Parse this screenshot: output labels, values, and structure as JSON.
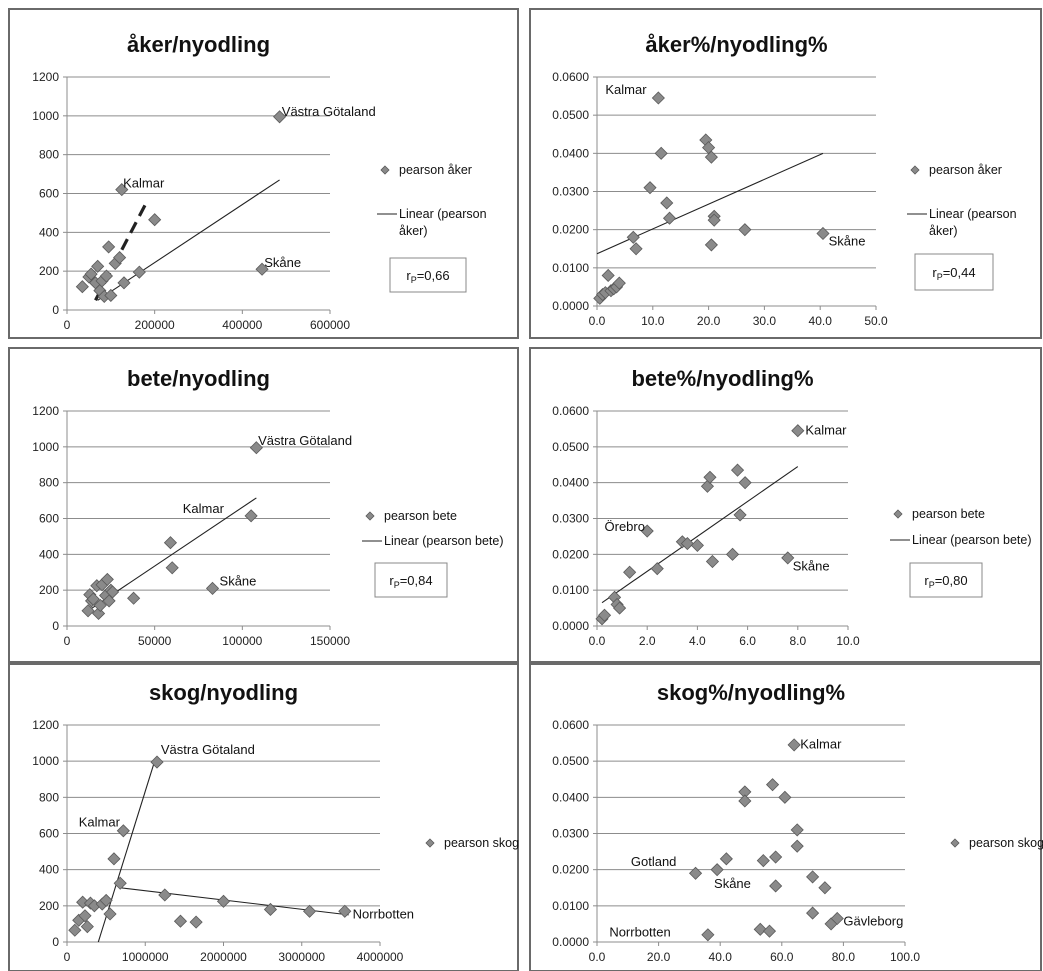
{
  "chart_data": [
    {
      "type": "scatter",
      "title": "åker/nyodling",
      "xlim": [
        0,
        600000
      ],
      "ylim": [
        0,
        1200
      ],
      "xticks": [
        0,
        200000,
        400000,
        600000
      ],
      "xtick_labels": [
        "0",
        "200000",
        "400000",
        "600000"
      ],
      "yticks": [
        0,
        200,
        400,
        600,
        800,
        1000,
        1200
      ],
      "ytick_labels": [
        "0",
        "200",
        "400",
        "600",
        "800",
        "1000",
        "1200"
      ],
      "grid": "horizontal",
      "series": [
        {
          "name": "pearson åker",
          "x": [
            35000,
            50000,
            55000,
            65000,
            70000,
            75000,
            80000,
            85000,
            90000,
            95000,
            100000,
            110000,
            120000,
            125000,
            130000,
            165000,
            200000,
            445000,
            485000
          ],
          "y": [
            120,
            170,
            185,
            140,
            225,
            100,
            150,
            70,
            175,
            325,
            75,
            240,
            270,
            620,
            140,
            195,
            465,
            210,
            995
          ]
        }
      ],
      "trendlines": [
        {
          "style": "solid",
          "x": [
            70000,
            485000
          ],
          "y": [
            50,
            670
          ]
        },
        {
          "style": "dashed",
          "x": [
            65000,
            185000
          ],
          "y": [
            50,
            570
          ]
        }
      ],
      "legend": {
        "marker": "pearson åker",
        "line_lines": [
          "Linear (pearson",
          "åker)"
        ],
        "placement": "right"
      },
      "correlation": {
        "prefix": "r",
        "sub": "P",
        "value": "=0,66"
      },
      "annotations": [
        {
          "text": "Västra Götaland",
          "x": 490000,
          "y": 1000
        },
        {
          "text": "Kalmar",
          "x": 128000,
          "y": 630
        },
        {
          "text": "Skåne",
          "x": 450000,
          "y": 222
        }
      ]
    },
    {
      "type": "scatter",
      "title": "åker%/nyodling%",
      "xlim": [
        0,
        50
      ],
      "ylim": [
        0,
        0.06
      ],
      "xticks": [
        0,
        10,
        20,
        30,
        40,
        50
      ],
      "xtick_labels": [
        "0.0",
        "10.0",
        "20.0",
        "30.0",
        "40.0",
        "50.0"
      ],
      "yticks": [
        0,
        0.01,
        0.02,
        0.03,
        0.04,
        0.05,
        0.06
      ],
      "ytick_labels": [
        "0.0000",
        "0.0100",
        "0.0200",
        "0.0300",
        "0.0400",
        "0.0500",
        "0.0600"
      ],
      "grid": "horizontal",
      "series": [
        {
          "name": "pearson åker",
          "x": [
            0.5,
            1.0,
            1.5,
            2.0,
            2.5,
            3.0,
            3.5,
            4.0,
            6.5,
            7.0,
            9.5,
            11.0,
            11.5,
            12.5,
            13.0,
            19.5,
            20.0,
            20.5,
            21.0,
            20.5,
            21.0,
            26.5,
            40.5
          ],
          "y": [
            0.002,
            0.003,
            0.0035,
            0.008,
            0.004,
            0.0045,
            0.005,
            0.006,
            0.018,
            0.015,
            0.031,
            0.0545,
            0.04,
            0.027,
            0.023,
            0.0435,
            0.0415,
            0.039,
            0.0235,
            0.016,
            0.0225,
            0.02,
            0.019
          ]
        }
      ],
      "trendlines": [
        {
          "style": "solid",
          "x": [
            0,
            40.5
          ],
          "y": [
            0.0137,
            0.04
          ]
        }
      ],
      "legend": {
        "marker": "pearson åker",
        "line_lines": [
          "Linear (pearson",
          "åker)"
        ],
        "placement": "right"
      },
      "correlation": {
        "prefix": "r",
        "sub": "P",
        "value": "=0,44"
      },
      "annotations": [
        {
          "text": "Kalmar",
          "x": 1.5,
          "y": 0.0555
        },
        {
          "text": "Skåne",
          "x": 41.5,
          "y": 0.0158
        }
      ]
    },
    {
      "type": "scatter",
      "title": "bete/nyodling",
      "xlim": [
        0,
        150000
      ],
      "ylim": [
        0,
        1200
      ],
      "xticks": [
        0,
        50000,
        100000,
        150000
      ],
      "xtick_labels": [
        "0",
        "50000",
        "100000",
        "150000"
      ],
      "yticks": [
        0,
        200,
        400,
        600,
        800,
        1000,
        1200
      ],
      "ytick_labels": [
        "0",
        "200",
        "400",
        "600",
        "800",
        "1000",
        "1200"
      ],
      "grid": "horizontal",
      "series": [
        {
          "name": "pearson bete",
          "x": [
            12000,
            13000,
            14000,
            15000,
            17000,
            18000,
            19000,
            20000,
            22000,
            23000,
            24000,
            25000,
            26000,
            38000,
            59000,
            60000,
            83000,
            105000,
            108000
          ],
          "y": [
            85,
            175,
            140,
            150,
            225,
            70,
            115,
            230,
            170,
            260,
            140,
            200,
            190,
            155,
            465,
            325,
            210,
            615,
            995
          ]
        }
      ],
      "trendlines": [
        {
          "style": "solid",
          "x": [
            12000,
            108000
          ],
          "y": [
            85,
            715
          ]
        }
      ],
      "legend": {
        "marker": "pearson bete",
        "line_lines": [
          "Linear (pearson bete)"
        ],
        "placement": "right"
      },
      "correlation": {
        "prefix": "r",
        "sub": "P",
        "value": "=0,84"
      },
      "annotations": [
        {
          "text": "Västra Götaland",
          "x": 109000,
          "y": 1010
        },
        {
          "text": "Kalmar",
          "x": 66000,
          "y": 630
        },
        {
          "text": "Skåne",
          "x": 87000,
          "y": 225
        }
      ]
    },
    {
      "type": "scatter",
      "title": "bete%/nyodling%",
      "xlim": [
        0,
        10
      ],
      "ylim": [
        0,
        0.06
      ],
      "xticks": [
        0,
        2,
        4,
        6,
        8,
        10
      ],
      "xtick_labels": [
        "0.0",
        "2.0",
        "4.0",
        "6.0",
        "8.0",
        "10.0"
      ],
      "yticks": [
        0,
        0.01,
        0.02,
        0.03,
        0.04,
        0.05,
        0.06
      ],
      "ytick_labels": [
        "0.0000",
        "0.0100",
        "0.0200",
        "0.0300",
        "0.0400",
        "0.0500",
        "0.0600"
      ],
      "grid": "horizontal",
      "series": [
        {
          "name": "pearson bete",
          "x": [
            0.2,
            0.3,
            0.7,
            0.8,
            0.9,
            1.3,
            2.0,
            2.4,
            3.4,
            3.6,
            4.0,
            4.4,
            4.5,
            4.6,
            5.4,
            5.6,
            5.7,
            5.9,
            7.6,
            8.0
          ],
          "y": [
            0.002,
            0.003,
            0.008,
            0.006,
            0.005,
            0.015,
            0.0265,
            0.016,
            0.0235,
            0.023,
            0.0225,
            0.039,
            0.0415,
            0.018,
            0.02,
            0.0435,
            0.031,
            0.04,
            0.019,
            0.0545
          ]
        }
      ],
      "trendlines": [
        {
          "style": "solid",
          "x": [
            0.2,
            8.0
          ],
          "y": [
            0.0065,
            0.0445
          ]
        }
      ],
      "legend": {
        "marker": "pearson bete",
        "line_lines": [
          "Linear (pearson bete)"
        ],
        "placement": "right"
      },
      "correlation": {
        "prefix": "r",
        "sub": "P",
        "value": "=0,80"
      },
      "annotations": [
        {
          "text": "Kalmar",
          "x": 8.3,
          "y": 0.0535
        },
        {
          "text": "Örebro",
          "x": 0.3,
          "y": 0.0265
        },
        {
          "text": "Skåne",
          "x": 7.8,
          "y": 0.0155
        }
      ]
    },
    {
      "type": "scatter",
      "title": "skog/nyodling",
      "xlim": [
        0,
        4000000
      ],
      "ylim": [
        0,
        1200
      ],
      "xticks": [
        0,
        1000000,
        2000000,
        3000000,
        4000000
      ],
      "xtick_labels": [
        "0",
        "1000000",
        "2000000",
        "3000000",
        "4000000"
      ],
      "yticks": [
        0,
        200,
        400,
        600,
        800,
        1000,
        1200
      ],
      "ytick_labels": [
        "0",
        "200",
        "400",
        "600",
        "800",
        "1000",
        "1200"
      ],
      "grid": "horizontal",
      "series": [
        {
          "name": "pearson skog",
          "x": [
            100000,
            150000,
            200000,
            230000,
            260000,
            300000,
            350000,
            450000,
            500000,
            550000,
            600000,
            680000,
            720000,
            1150000,
            1250000,
            1450000,
            1650000,
            2000000,
            2600000,
            3100000,
            3550000
          ],
          "y": [
            65,
            120,
            220,
            145,
            85,
            215,
            200,
            210,
            230,
            155,
            460,
            325,
            615,
            995,
            260,
            115,
            110,
            225,
            180,
            170,
            170
          ]
        }
      ],
      "trendlines": [
        {
          "style": "solid",
          "x": [
            400000,
            1120000
          ],
          "y": [
            0,
            1000
          ]
        },
        {
          "style": "solid",
          "x": [
            680000,
            3600000
          ],
          "y": [
            300,
            150
          ]
        }
      ],
      "legend": {
        "marker": "pearson skog",
        "placement": "right"
      },
      "annotations": [
        {
          "text": "Västra Götaland",
          "x": 1200000,
          "y": 1040
        },
        {
          "text": "Kalmar",
          "x": 150000,
          "y": 640
        },
        {
          "text": "Norrbotten",
          "x": 3650000,
          "y": 130
        }
      ]
    },
    {
      "type": "scatter",
      "title": "skog%/nyodling%",
      "xlim": [
        0,
        100
      ],
      "ylim": [
        0,
        0.06
      ],
      "xticks": [
        0,
        20,
        40,
        60,
        80,
        100
      ],
      "xtick_labels": [
        "0.0",
        "20.0",
        "40.0",
        "60.0",
        "80.0",
        "100.0"
      ],
      "yticks": [
        0,
        0.01,
        0.02,
        0.03,
        0.04,
        0.05,
        0.06
      ],
      "ytick_labels": [
        "0.0000",
        "0.0100",
        "0.0200",
        "0.0300",
        "0.0400",
        "0.0500",
        "0.0600"
      ],
      "grid": "horizontal",
      "series": [
        {
          "name": "pearson skog",
          "x": [
            32,
            36,
            39,
            42,
            48,
            48,
            53,
            54,
            56,
            57,
            58,
            58,
            61,
            64,
            65,
            65,
            70,
            70,
            74,
            76,
            78
          ],
          "y": [
            0.019,
            0.002,
            0.02,
            0.023,
            0.0415,
            0.039,
            0.0035,
            0.0225,
            0.003,
            0.0435,
            0.0235,
            0.0155,
            0.04,
            0.0545,
            0.031,
            0.0265,
            0.018,
            0.008,
            0.015,
            0.005,
            0.0065
          ]
        }
      ],
      "trendlines": [],
      "legend": {
        "marker": "pearson skog",
        "placement": "right"
      },
      "annotations": [
        {
          "text": "Kalmar",
          "x": 66,
          "y": 0.0535
        },
        {
          "text": "Gotland",
          "x": 11,
          "y": 0.021
        },
        {
          "text": "Skåne",
          "x": 38,
          "y": 0.015
        },
        {
          "text": "Norrbotten",
          "x": 4,
          "y": 0.0015
        },
        {
          "text": "Gävleborg",
          "x": 80,
          "y": 0.0045
        }
      ]
    }
  ]
}
